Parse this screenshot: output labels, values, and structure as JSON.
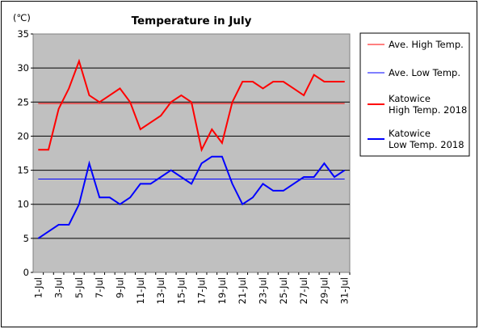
{
  "chart_data": {
    "type": "line",
    "title": "Temperature in July",
    "unit_label": "(℃)",
    "ylim": [
      0,
      35
    ],
    "yticks": [
      0,
      5,
      10,
      15,
      20,
      25,
      30,
      35
    ],
    "x": [
      "1-Jul",
      "2-Jul",
      "3-Jul",
      "4-Jul",
      "5-Jul",
      "6-Jul",
      "7-Jul",
      "8-Jul",
      "9-Jul",
      "10-Jul",
      "11-Jul",
      "12-Jul",
      "13-Jul",
      "14-Jul",
      "15-Jul",
      "16-Jul",
      "17-Jul",
      "18-Jul",
      "19-Jul",
      "20-Jul",
      "21-Jul",
      "22-Jul",
      "23-Jul",
      "24-Jul",
      "25-Jul",
      "26-Jul",
      "27-Jul",
      "28-Jul",
      "29-Jul",
      "30-Jul",
      "31-Jul"
    ],
    "xtick_labels": [
      "1-Jul",
      "3-Jul",
      "5-Jul",
      "7-Jul",
      "9-Jul",
      "11-Jul",
      "13-Jul",
      "15-Jul",
      "17-Jul",
      "19-Jul",
      "21-Jul",
      "23-Jul",
      "25-Jul",
      "27-Jul",
      "29-Jul",
      "31-Jul"
    ],
    "grid": true,
    "legend_position": "right",
    "series": [
      {
        "name": "Ave. High Temp.",
        "color": "#ff0000",
        "style": "thin",
        "constant": 24.8
      },
      {
        "name": "Ave. Low Temp.",
        "color": "#0000ff",
        "style": "thin",
        "constant": 13.7
      },
      {
        "name": "Katowice\nHigh Temp. 2018",
        "color": "#ff0000",
        "style": "thick",
        "values": [
          18,
          18,
          24,
          27,
          31,
          26,
          25,
          26,
          27,
          25,
          21,
          22,
          23,
          25,
          26,
          25,
          18,
          21,
          19,
          25,
          28,
          28,
          27,
          28,
          28,
          27,
          26,
          29,
          28,
          28,
          28
        ]
      },
      {
        "name": "Katowice\nLow Temp. 2018",
        "color": "#0000ff",
        "style": "thick",
        "values": [
          5,
          6,
          7,
          7,
          10,
          16,
          11,
          11,
          10,
          11,
          13,
          13,
          14,
          15,
          14,
          13,
          16,
          17,
          17,
          13,
          10,
          11,
          13,
          12,
          12,
          13,
          14,
          14,
          16,
          14,
          15
        ]
      }
    ]
  }
}
